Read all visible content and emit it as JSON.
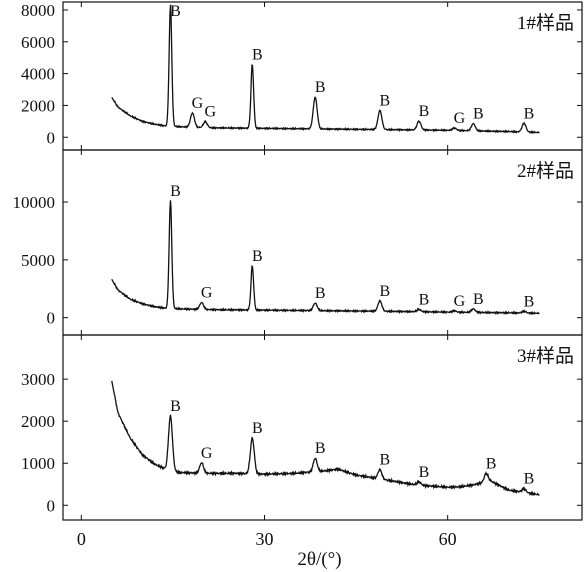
{
  "chart_data": [
    {
      "type": "line",
      "sample_label": "1#样品",
      "ylim": [
        -800,
        8500
      ],
      "yticks": [
        0,
        2000,
        4000,
        6000,
        8000
      ],
      "ytick_labels": [
        "0",
        "2000",
        "4000",
        "6000",
        "8000"
      ],
      "base": [
        [
          5,
          2500
        ],
        [
          6,
          1900
        ],
        [
          8,
          1350
        ],
        [
          10,
          1000
        ],
        [
          12,
          820
        ],
        [
          14,
          700
        ],
        [
          20,
          600
        ],
        [
          30,
          560
        ],
        [
          40,
          520
        ],
        [
          50,
          480
        ],
        [
          60,
          440
        ],
        [
          70,
          360
        ],
        [
          75,
          300
        ]
      ],
      "peaks": [
        {
          "x": 14.6,
          "h": 7600,
          "label": "B"
        },
        {
          "x": 18.2,
          "h": 900,
          "label": "G"
        },
        {
          "x": 20.3,
          "h": 380,
          "label": "G"
        },
        {
          "x": 28.0,
          "h": 4000,
          "label": "B"
        },
        {
          "x": 38.3,
          "h": 2000,
          "label": "B"
        },
        {
          "x": 48.9,
          "h": 1200,
          "label": "B"
        },
        {
          "x": 55.3,
          "h": 550,
          "label": "B"
        },
        {
          "x": 61.1,
          "h": 150,
          "label": "G"
        },
        {
          "x": 64.2,
          "h": 450,
          "label": "B"
        },
        {
          "x": 72.5,
          "h": 550,
          "label": "B"
        }
      ]
    },
    {
      "type": "line",
      "sample_label": "2#样品",
      "ylim": [
        -1500,
        14500
      ],
      "yticks": [
        0,
        5000,
        10000
      ],
      "ytick_labels": [
        "0",
        "5000",
        "10000"
      ],
      "base": [
        [
          5,
          3300
        ],
        [
          6,
          2400
        ],
        [
          8,
          1600
        ],
        [
          10,
          1200
        ],
        [
          12,
          950
        ],
        [
          14,
          800
        ],
        [
          20,
          700
        ],
        [
          30,
          650
        ],
        [
          40,
          600
        ],
        [
          50,
          550
        ],
        [
          60,
          480
        ],
        [
          70,
          420
        ],
        [
          75,
          380
        ]
      ],
      "peaks": [
        {
          "x": 14.6,
          "h": 9300,
          "label": "B"
        },
        {
          "x": 19.7,
          "h": 600,
          "label": "G"
        },
        {
          "x": 28.0,
          "h": 3800,
          "label": "B"
        },
        {
          "x": 38.3,
          "h": 650,
          "label": "B"
        },
        {
          "x": 48.9,
          "h": 900,
          "label": "B"
        },
        {
          "x": 55.3,
          "h": 200,
          "label": "B"
        },
        {
          "x": 61.1,
          "h": 120,
          "label": "G"
        },
        {
          "x": 64.2,
          "h": 300,
          "label": "B"
        },
        {
          "x": 72.5,
          "h": 150,
          "label": "B"
        }
      ]
    },
    {
      "type": "line",
      "sample_label": "3#样品",
      "ylim": [
        -350,
        4050
      ],
      "yticks": [
        0,
        1000,
        2000,
        3000
      ],
      "ytick_labels": [
        "0",
        "1000",
        "2000",
        "3000"
      ],
      "base": [
        [
          5,
          2950
        ],
        [
          6,
          2200
        ],
        [
          8,
          1600
        ],
        [
          10,
          1200
        ],
        [
          12,
          980
        ],
        [
          14,
          850
        ],
        [
          16,
          780
        ],
        [
          20,
          760
        ],
        [
          25,
          760
        ],
        [
          30,
          740
        ],
        [
          35,
          760
        ],
        [
          40,
          820
        ],
        [
          42,
          860
        ],
        [
          45,
          720
        ],
        [
          50,
          600
        ],
        [
          55,
          480
        ],
        [
          60,
          430
        ],
        [
          62,
          440
        ],
        [
          64,
          480
        ],
        [
          67,
          580
        ],
        [
          70,
          360
        ],
        [
          75,
          250
        ]
      ],
      "peaks": [
        {
          "x": 14.6,
          "h": 1300,
          "label": "B"
        },
        {
          "x": 19.7,
          "h": 250,
          "label": "G"
        },
        {
          "x": 28.0,
          "h": 850,
          "label": "B"
        },
        {
          "x": 38.3,
          "h": 320,
          "label": "B"
        },
        {
          "x": 48.9,
          "h": 220,
          "label": "B"
        },
        {
          "x": 55.3,
          "h": 80,
          "label": "B"
        },
        {
          "x": 66.3,
          "h": 200,
          "label": "B"
        },
        {
          "x": 72.5,
          "h": 90,
          "label": "B"
        }
      ]
    }
  ],
  "x_axis": {
    "xlim": [
      -3,
      82
    ],
    "ticks": [
      0,
      30,
      60
    ],
    "tick_labels": [
      "0",
      "30",
      "60"
    ],
    "label": "2θ/(°)"
  }
}
